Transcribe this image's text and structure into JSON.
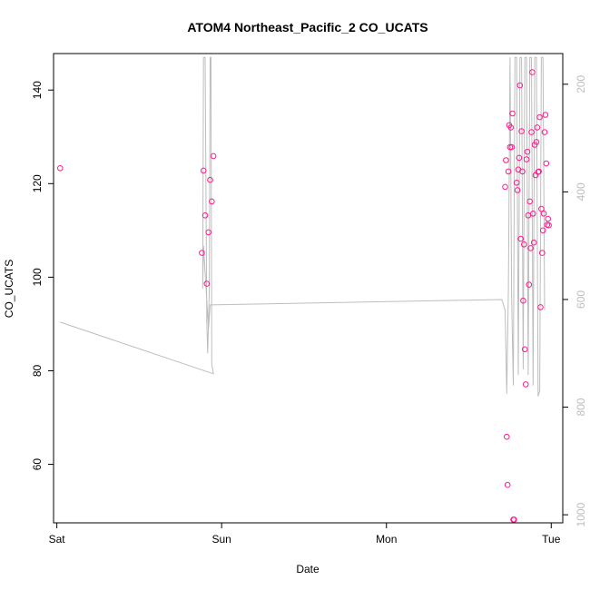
{
  "chart_data": {
    "type": "scatter",
    "title": "ATOM4 Northeast_Pacific_2 CO_UCATS",
    "xlabel": "Date",
    "ylabel": "CO_UCATS",
    "x_ticks": [
      "Sat",
      "Sun",
      "Mon",
      "Tue"
    ],
    "x_range_days": [
      -0.02,
      3.07
    ],
    "ylim": [
      47.5,
      147.8
    ],
    "y_ticks": [
      60,
      80,
      100,
      120,
      140
    ],
    "y2_ticks": [
      200,
      400,
      600,
      800,
      1000
    ],
    "y2lim": [
      1015,
      143
    ],
    "grid": false,
    "colors": {
      "points": "#ff1a8c",
      "line": "#bdbdbd",
      "axis": "#000000"
    },
    "series": [
      {
        "type": "scatter",
        "points": [
          [
            0.02,
            123.3
          ],
          [
            0.88,
            105.2
          ],
          [
            0.89,
            122.8
          ],
          [
            0.9,
            113.2
          ],
          [
            0.91,
            98.6
          ],
          [
            0.92,
            109.6
          ],
          [
            0.93,
            120.8
          ],
          [
            0.94,
            116.2
          ],
          [
            0.95,
            125.9
          ],
          [
            2.72,
            119.3
          ],
          [
            2.725,
            125.0
          ],
          [
            2.73,
            65.9
          ],
          [
            2.735,
            55.6
          ],
          [
            2.74,
            122.6
          ],
          [
            2.745,
            132.5
          ],
          [
            2.75,
            127.8
          ],
          [
            2.755,
            132.0
          ],
          [
            2.76,
            127.8
          ],
          [
            2.765,
            135.0
          ],
          [
            2.77,
            48.2
          ],
          [
            2.775,
            48.2
          ],
          [
            2.79,
            120.2
          ],
          [
            2.795,
            118.6
          ],
          [
            2.8,
            123.0
          ],
          [
            2.805,
            125.5
          ],
          [
            2.81,
            141.0
          ],
          [
            2.815,
            108.2
          ],
          [
            2.82,
            131.2
          ],
          [
            2.825,
            122.6
          ],
          [
            2.83,
            95.0
          ],
          [
            2.835,
            107.0
          ],
          [
            2.84,
            84.6
          ],
          [
            2.845,
            77.1
          ],
          [
            2.85,
            125.2
          ],
          [
            2.855,
            126.8
          ],
          [
            2.86,
            113.2
          ],
          [
            2.865,
            98.4
          ],
          [
            2.87,
            116.2
          ],
          [
            2.875,
            106.2
          ],
          [
            2.88,
            131.0
          ],
          [
            2.885,
            143.8
          ],
          [
            2.89,
            113.6
          ],
          [
            2.895,
            107.4
          ],
          [
            2.9,
            128.3
          ],
          [
            2.905,
            121.8
          ],
          [
            2.91,
            128.9
          ],
          [
            2.915,
            132.0
          ],
          [
            2.92,
            122.5
          ],
          [
            2.925,
            122.6
          ],
          [
            2.93,
            134.2
          ],
          [
            2.935,
            93.6
          ],
          [
            2.94,
            114.6
          ],
          [
            2.945,
            105.2
          ],
          [
            2.95,
            110.0
          ],
          [
            2.955,
            113.6
          ],
          [
            2.96,
            131.0
          ],
          [
            2.965,
            134.7
          ],
          [
            2.97,
            124.3
          ],
          [
            2.975,
            111.2
          ],
          [
            2.98,
            112.5
          ],
          [
            2.985,
            111.1
          ]
        ]
      },
      {
        "type": "line",
        "axis": "right",
        "points": [
          [
            0.02,
            642
          ],
          [
            0.95,
            738
          ],
          [
            0.94,
            720
          ],
          [
            0.935,
            150
          ],
          [
            0.93,
            150
          ],
          [
            0.925,
            580
          ],
          [
            0.915,
            700
          ],
          [
            0.91,
            640
          ],
          [
            0.9,
            150
          ],
          [
            0.89,
            150
          ],
          [
            0.885,
            580
          ],
          [
            0.89,
            500
          ],
          [
            0.92,
            655
          ],
          [
            0.93,
            610
          ],
          [
            2.7,
            600
          ],
          [
            2.72,
            620
          ],
          [
            2.73,
            775
          ],
          [
            2.74,
            580
          ],
          [
            2.75,
            150
          ],
          [
            2.76,
            600
          ],
          [
            2.77,
            760
          ],
          [
            2.78,
            150
          ],
          [
            2.79,
            150
          ],
          [
            2.8,
            740
          ],
          [
            2.81,
            150
          ],
          [
            2.82,
            150
          ],
          [
            2.83,
            730
          ],
          [
            2.84,
            150
          ],
          [
            2.85,
            150
          ],
          [
            2.86,
            740
          ],
          [
            2.87,
            150
          ],
          [
            2.88,
            150
          ],
          [
            2.89,
            760
          ],
          [
            2.9,
            150
          ],
          [
            2.91,
            150
          ],
          [
            2.92,
            780
          ],
          [
            2.93,
            770
          ],
          [
            2.94,
            150
          ],
          [
            2.95,
            150
          ],
          [
            2.96,
            620
          ]
        ]
      }
    ]
  }
}
